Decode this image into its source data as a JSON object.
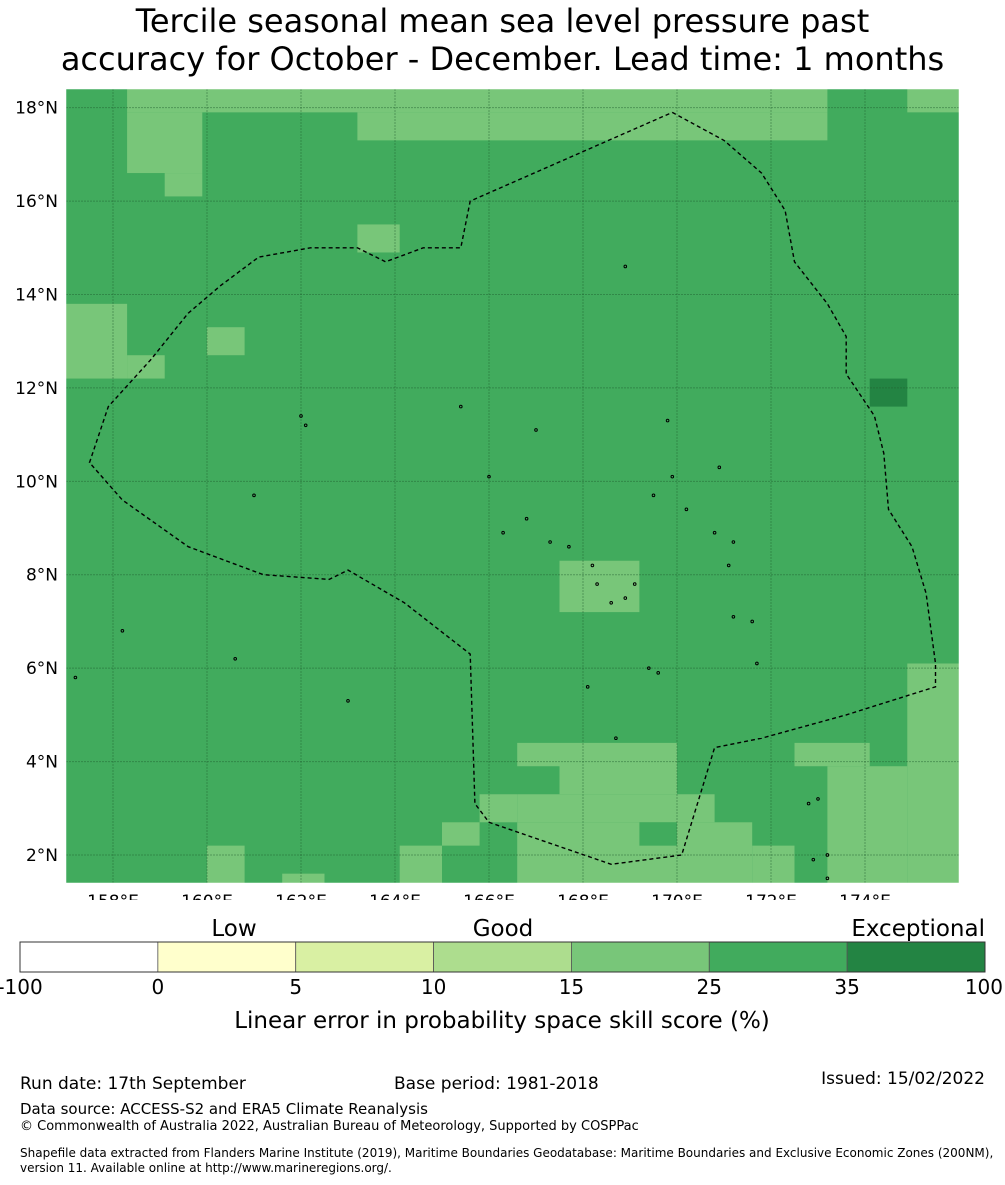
{
  "title": {
    "line1": "Tercile seasonal mean sea level pressure past",
    "line2": "accuracy for October - December. Lead time: 1 months"
  },
  "map": {
    "extent": {
      "lon_min": 157.0,
      "lon_max": 176.0,
      "lat_min": 1.4,
      "lat_max": 18.4
    },
    "grid_cell_deg": 0.833,
    "lat_ticks": [
      {
        "value": 2,
        "label": "2°N"
      },
      {
        "value": 4,
        "label": "4°N"
      },
      {
        "value": 6,
        "label": "6°N"
      },
      {
        "value": 8,
        "label": "8°N"
      },
      {
        "value": 10,
        "label": "10°N"
      },
      {
        "value": 12,
        "label": "12°N"
      },
      {
        "value": 14,
        "label": "14°N"
      },
      {
        "value": 16,
        "label": "16°N"
      },
      {
        "value": 18,
        "label": "18°N"
      }
    ],
    "lon_ticks": [
      {
        "value": 158,
        "label": "158°E"
      },
      {
        "value": 160,
        "label": "160°E"
      },
      {
        "value": 162,
        "label": "162°E"
      },
      {
        "value": 164,
        "label": "164°E"
      },
      {
        "value": 166,
        "label": "166°E"
      },
      {
        "value": 168,
        "label": "168°E"
      },
      {
        "value": 170,
        "label": "170°E"
      },
      {
        "value": 172,
        "label": "172°E"
      },
      {
        "value": 174,
        "label": "174°E"
      }
    ],
    "background_category": "25-35",
    "cells": [
      {
        "lon": [
          158.3,
          173.2
        ],
        "lat": [
          17.9,
          18.4
        ],
        "category": "15-25"
      },
      {
        "lon": [
          174.9,
          176.0
        ],
        "lat": [
          17.9,
          18.4
        ],
        "category": "15-25"
      },
      {
        "lon": [
          158.3,
          159.9
        ],
        "lat": [
          16.6,
          17.9
        ],
        "category": "15-25"
      },
      {
        "lon": [
          159.1,
          159.9
        ],
        "lat": [
          16.1,
          16.6
        ],
        "category": "15-25"
      },
      {
        "lon": [
          163.2,
          173.2
        ],
        "lat": [
          17.3,
          17.9
        ],
        "category": "15-25"
      },
      {
        "lon": [
          163.2,
          164.1
        ],
        "lat": [
          14.9,
          15.5
        ],
        "category": "15-25"
      },
      {
        "lon": [
          157.0,
          158.3
        ],
        "lat": [
          12.2,
          13.8
        ],
        "category": "15-25"
      },
      {
        "lon": [
          158.3,
          159.1
        ],
        "lat": [
          12.2,
          12.7
        ],
        "category": "15-25"
      },
      {
        "lon": [
          160.0,
          160.8
        ],
        "lat": [
          12.7,
          13.3
        ],
        "category": "15-25"
      },
      {
        "lon": [
          174.1,
          174.9
        ],
        "lat": [
          11.6,
          12.2
        ],
        "category": "35-100"
      },
      {
        "lon": [
          167.5,
          169.2
        ],
        "lat": [
          7.2,
          8.3
        ],
        "category": "15-25"
      },
      {
        "lon": [
          174.9,
          176.0
        ],
        "lat": [
          1.4,
          6.1
        ],
        "category": "15-25"
      },
      {
        "lon": [
          172.5,
          174.1
        ],
        "lat": [
          3.9,
          4.4
        ],
        "category": "15-25"
      },
      {
        "lon": [
          173.2,
          174.9
        ],
        "lat": [
          1.4,
          3.9
        ],
        "category": "15-25"
      },
      {
        "lon": [
          166.6,
          167.5
        ],
        "lat": [
          3.9,
          4.4
        ],
        "category": "15-25"
      },
      {
        "lon": [
          167.5,
          170.0
        ],
        "lat": [
          3.3,
          4.4
        ],
        "category": "15-25"
      },
      {
        "lon": [
          166.6,
          170.0
        ],
        "lat": [
          2.7,
          3.3
        ],
        "category": "15-25"
      },
      {
        "lon": [
          165.8,
          166.6
        ],
        "lat": [
          2.7,
          3.3
        ],
        "category": "15-25"
      },
      {
        "lon": [
          166.6,
          170.0
        ],
        "lat": [
          1.4,
          2.7
        ],
        "category": "15-25"
      },
      {
        "lon": [
          170.0,
          170.8
        ],
        "lat": [
          2.7,
          3.3
        ],
        "category": "15-25"
      },
      {
        "lon": [
          170.0,
          171.6
        ],
        "lat": [
          1.4,
          2.7
        ],
        "category": "15-25"
      },
      {
        "lon": [
          171.6,
          172.5
        ],
        "lat": [
          1.4,
          2.2
        ],
        "category": "15-25"
      },
      {
        "lon": [
          165.0,
          165.8
        ],
        "lat": [
          2.2,
          2.7
        ],
        "category": "15-25"
      },
      {
        "lon": [
          164.1,
          165.0
        ],
        "lat": [
          1.4,
          2.2
        ],
        "category": "15-25"
      },
      {
        "lon": [
          160.0,
          160.8
        ],
        "lat": [
          1.4,
          2.2
        ],
        "category": "15-25"
      },
      {
        "lon": [
          161.6,
          162.5
        ],
        "lat": [
          1.4,
          1.6
        ],
        "category": "15-25"
      },
      {
        "lon": [
          169.2,
          170.0
        ],
        "lat": [
          2.2,
          2.7
        ],
        "category": "25-35"
      }
    ],
    "eez_boundary": [
      [
        169.9,
        17.9
      ],
      [
        171.0,
        17.3
      ],
      [
        171.8,
        16.6
      ],
      [
        172.3,
        15.8
      ],
      [
        172.5,
        14.7
      ],
      [
        173.2,
        13.8
      ],
      [
        173.6,
        13.1
      ],
      [
        173.6,
        12.3
      ],
      [
        174.2,
        11.4
      ],
      [
        174.4,
        10.6
      ],
      [
        174.5,
        9.4
      ],
      [
        175.0,
        8.6
      ],
      [
        175.3,
        7.6
      ],
      [
        175.5,
        6.1
      ],
      [
        175.5,
        5.6
      ],
      [
        173.6,
        5.0
      ],
      [
        171.8,
        4.5
      ],
      [
        170.8,
        4.3
      ],
      [
        170.1,
        2.0
      ],
      [
        168.6,
        1.8
      ],
      [
        166.0,
        2.7
      ],
      [
        165.7,
        3.1
      ],
      [
        165.6,
        6.3
      ],
      [
        164.2,
        7.4
      ],
      [
        163.0,
        8.1
      ],
      [
        162.6,
        7.9
      ],
      [
        161.2,
        8.0
      ],
      [
        159.6,
        8.6
      ],
      [
        158.2,
        9.6
      ],
      [
        157.5,
        10.4
      ],
      [
        157.9,
        11.6
      ],
      [
        158.8,
        12.6
      ],
      [
        159.6,
        13.6
      ],
      [
        160.3,
        14.2
      ],
      [
        161.1,
        14.8
      ],
      [
        162.2,
        15.0
      ],
      [
        163.2,
        15.0
      ],
      [
        163.8,
        14.7
      ],
      [
        164.6,
        15.0
      ],
      [
        165.4,
        15.0
      ],
      [
        165.6,
        16.0
      ],
      [
        169.9,
        17.9
      ]
    ],
    "islands": [
      [
        158.2,
        6.8
      ],
      [
        160.6,
        6.2
      ],
      [
        162.0,
        11.4
      ],
      [
        162.1,
        11.2
      ],
      [
        165.4,
        11.6
      ],
      [
        167.0,
        11.1
      ],
      [
        166.0,
        10.1
      ],
      [
        161.0,
        9.7
      ],
      [
        166.3,
        8.9
      ],
      [
        166.8,
        9.2
      ],
      [
        167.3,
        8.7
      ],
      [
        167.7,
        8.6
      ],
      [
        168.2,
        8.2
      ],
      [
        168.3,
        7.8
      ],
      [
        168.6,
        7.4
      ],
      [
        168.9,
        7.5
      ],
      [
        169.1,
        7.8
      ],
      [
        169.5,
        9.7
      ],
      [
        169.9,
        10.1
      ],
      [
        170.2,
        9.4
      ],
      [
        170.9,
        10.3
      ],
      [
        170.8,
        8.9
      ],
      [
        171.2,
        8.7
      ],
      [
        171.1,
        8.2
      ],
      [
        171.2,
        7.1
      ],
      [
        171.6,
        7.0
      ],
      [
        171.7,
        6.1
      ],
      [
        169.4,
        6.0
      ],
      [
        169.6,
        5.9
      ],
      [
        168.1,
        5.6
      ],
      [
        168.7,
        4.5
      ],
      [
        163.0,
        5.3
      ],
      [
        157.2,
        5.8
      ],
      [
        168.9,
        14.6
      ],
      [
        169.8,
        11.3
      ],
      [
        173.0,
        3.2
      ],
      [
        172.8,
        3.1
      ],
      [
        172.9,
        1.9
      ],
      [
        173.2,
        1.5
      ],
      [
        173.2,
        2.0
      ]
    ]
  },
  "colorbar": {
    "boundary_labels": [
      "-100",
      "0",
      "5",
      "10",
      "15",
      "25",
      "35",
      "100"
    ],
    "segment_colors": [
      "#ffffff",
      "#ffffcc",
      "#d9f0a3",
      "#addd8e",
      "#78c679",
      "#41ab5d",
      "#238443"
    ],
    "category_colors": {
      "15-25": "#78c679",
      "25-35": "#41ab5d",
      "35-100": "#238443"
    },
    "headings": {
      "low": "Low",
      "good": "Good",
      "exceptional": "Exceptional"
    },
    "label": "Linear error in probability space skill score (%)"
  },
  "footer": {
    "run_date": "Run date: 17th September",
    "base_period": "Base period: 1981-2018",
    "issued": "Issued: 15/02/2022",
    "data_source": "Data source: ACCESS-S2 and ERA5 Climate Reanalysis",
    "copyright": "© Commonwealth of Australia 2022, Australian Bureau of Meteorology, Supported by COSPPac",
    "shapefile": "Shapefile data extracted from Flanders Marine Institute (2019), Maritime Boundaries Geodatabase: Maritime Boundaries and Exclusive Economic Zones (200NM), version 11. Available online at http://www.marineregions.org/."
  }
}
